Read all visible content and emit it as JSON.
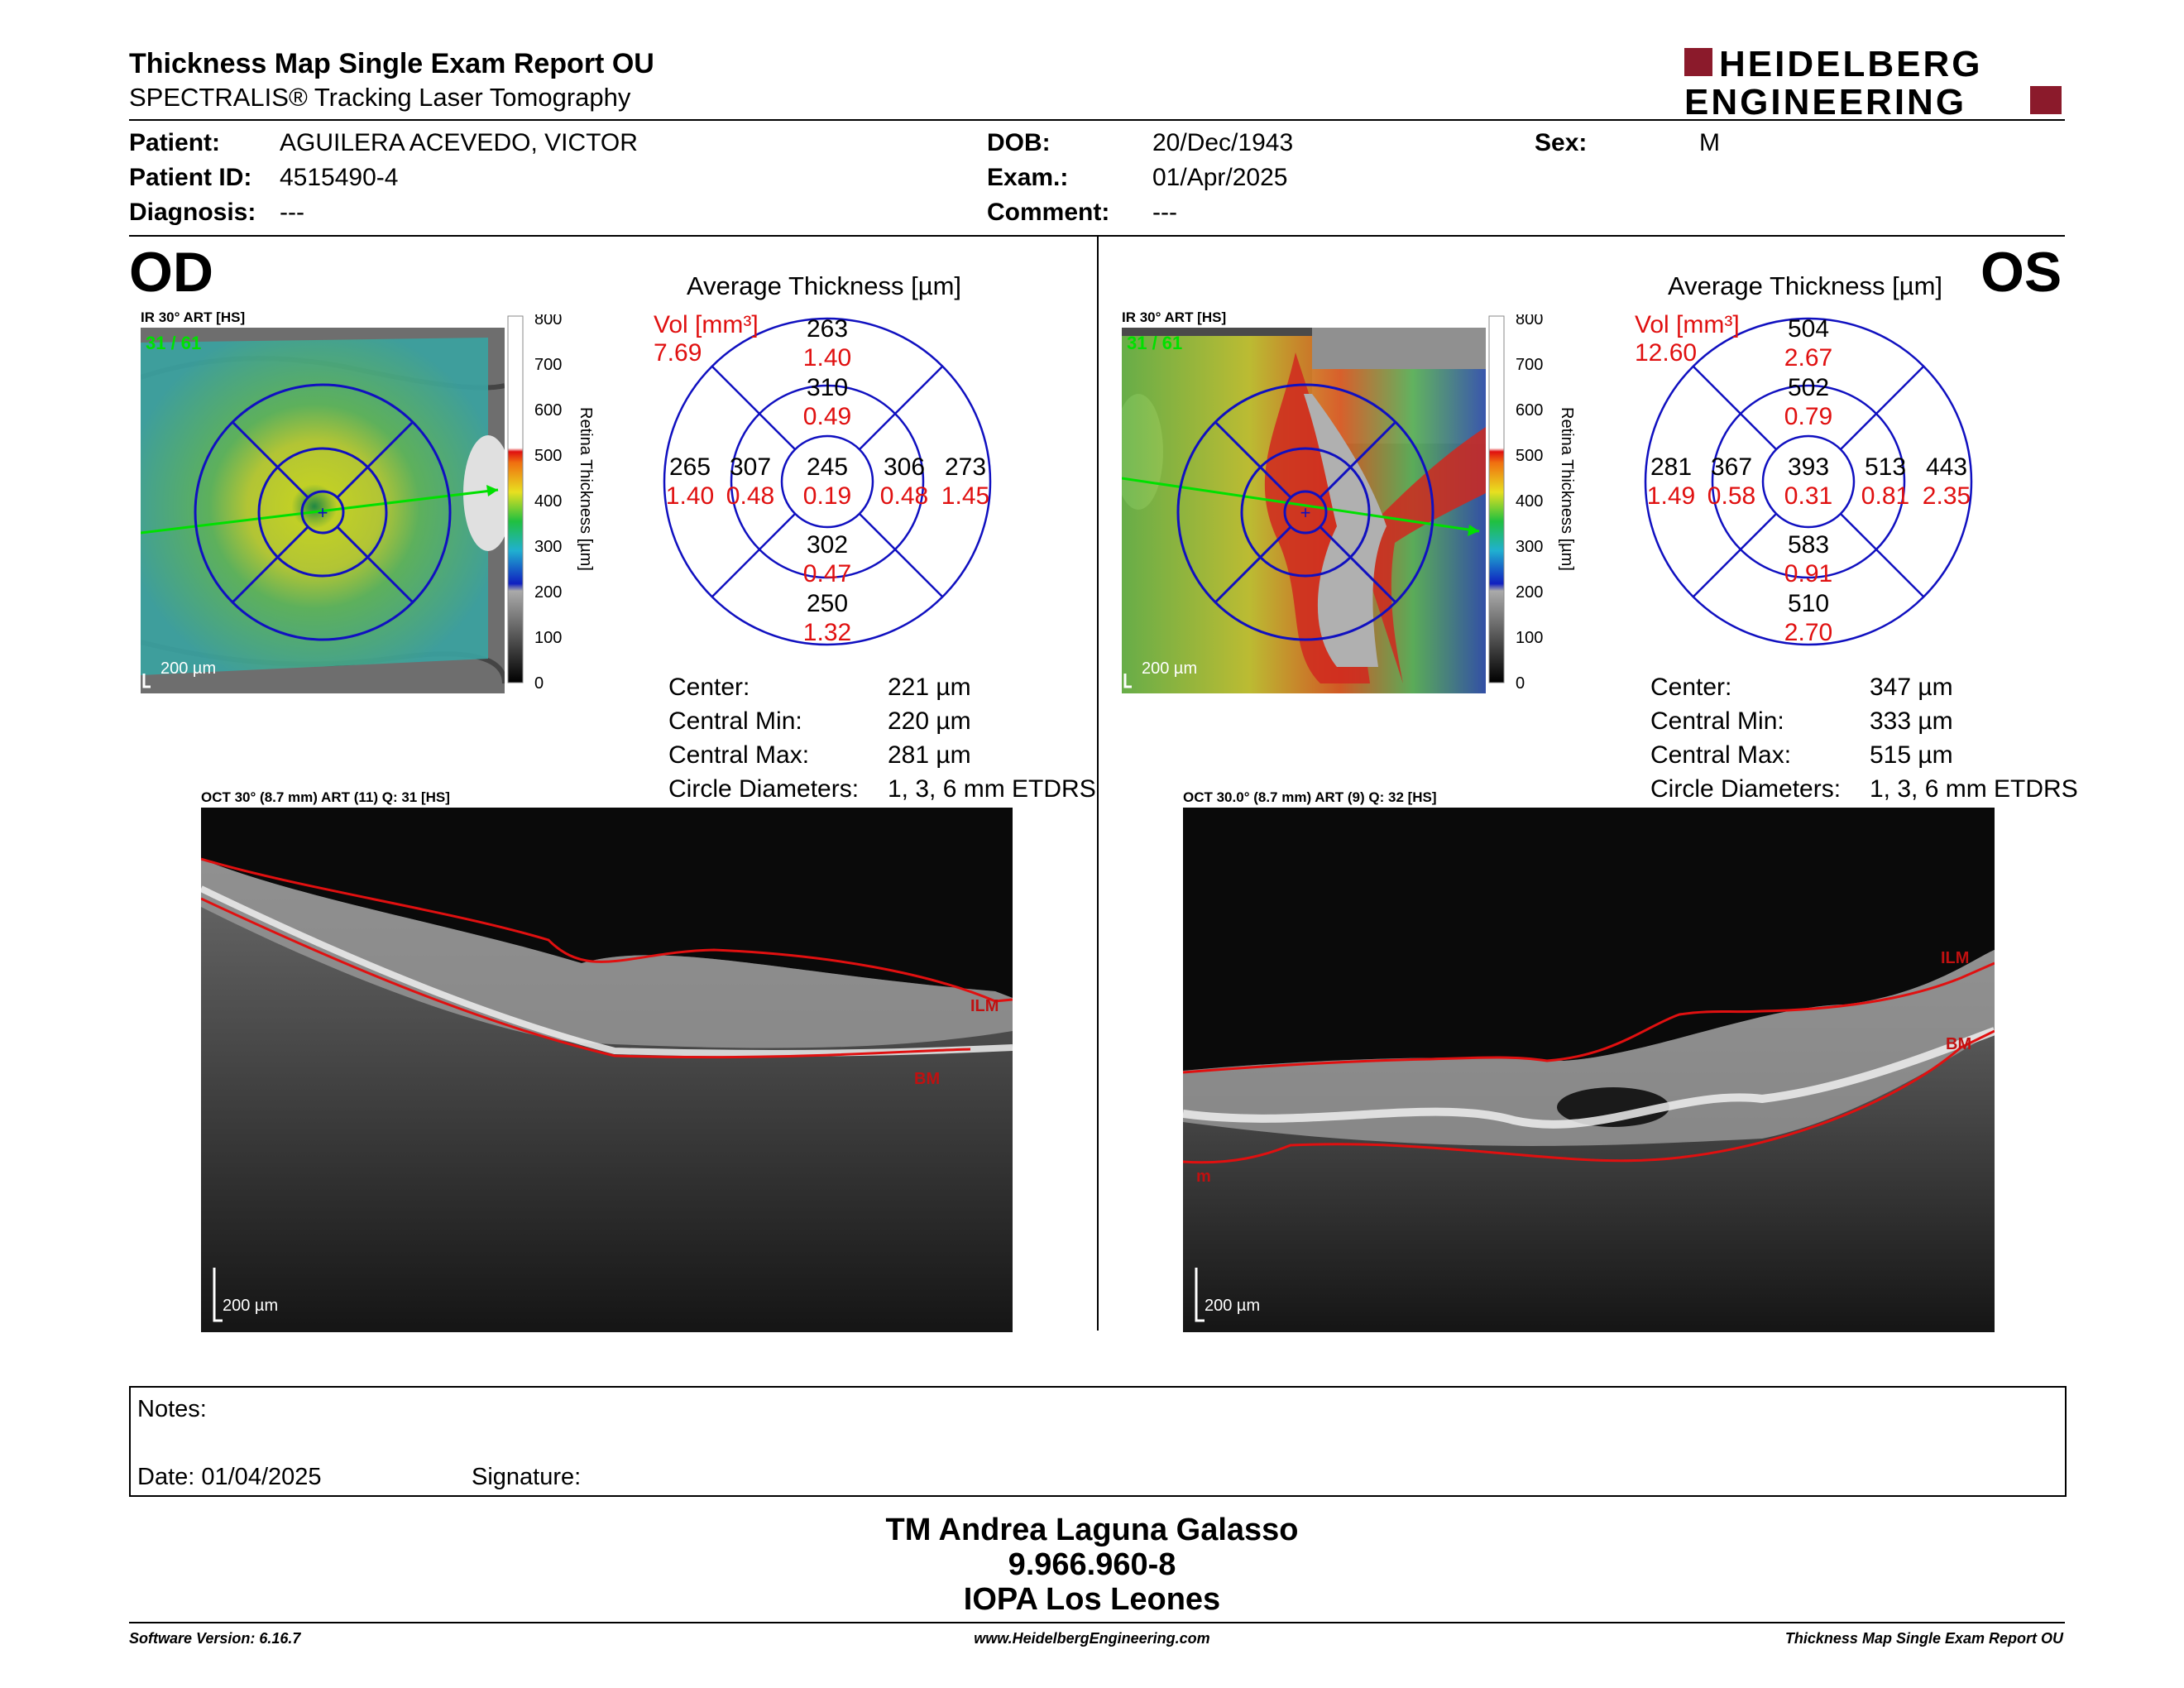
{
  "header": {
    "title": "Thickness Map Single Exam Report OU",
    "subtitle": "SPECTRALIS® Tracking Laser Tomography",
    "logo_line1": "HEIDELBERG",
    "logo_line2": "ENGINEERING",
    "logo_color": "#8b1a2b"
  },
  "patient": {
    "patient_label": "Patient:",
    "patient_value": "AGUILERA ACEVEDO, VICTOR",
    "id_label": "Patient ID:",
    "id_value": "4515490-4",
    "diagnosis_label": "Diagnosis:",
    "diagnosis_value": "---",
    "dob_label": "DOB:",
    "dob_value": "20/Dec/1943",
    "exam_label": "Exam.:",
    "exam_value": "01/Apr/2025",
    "comment_label": "Comment:",
    "comment_value": "---",
    "sex_label": "Sex:",
    "sex_value": "M"
  },
  "colorbar": {
    "ticks": [
      "800",
      "700",
      "600",
      "500",
      "400",
      "300",
      "200",
      "100",
      "0"
    ],
    "label": "Retina  Thickness [µm]"
  },
  "od": {
    "eye": "OD",
    "ir_caption": "IR 30° ART [HS]",
    "ir_overlay": "31 / 61",
    "scale": "200 µm",
    "avg_title": "Average Thickness [µm]",
    "vol_label": "Vol [mm³]",
    "vol_value": "7.69",
    "sectors": {
      "outer_top": {
        "t": "263",
        "v": "1.40"
      },
      "inner_top": {
        "t": "310",
        "v": "0.49"
      },
      "outer_left": {
        "t": "265",
        "v": "1.40"
      },
      "inner_left": {
        "t": "307",
        "v": "0.48"
      },
      "center": {
        "t": "245",
        "v": "0.19"
      },
      "inner_right": {
        "t": "306",
        "v": "0.48"
      },
      "outer_right": {
        "t": "273",
        "v": "1.45"
      },
      "inner_bottom": {
        "t": "302",
        "v": "0.47"
      },
      "outer_bottom": {
        "t": "250",
        "v": "1.32"
      }
    },
    "stats": [
      {
        "label": "Center:",
        "value": "221 µm"
      },
      {
        "label": "Central Min:",
        "value": "220 µm"
      },
      {
        "label": "Central Max:",
        "value": "281 µm"
      },
      {
        "label": "Circle Diameters:",
        "value": "1, 3, 6 mm ETDRS"
      }
    ],
    "oct_caption": "OCT 30° (8.7 mm) ART (11) Q: 31 [HS]",
    "ilm": "ILM",
    "bm": "BM"
  },
  "os": {
    "eye": "OS",
    "ir_caption": "IR 30° ART [HS]",
    "ir_overlay": "31 / 61",
    "scale": "200 µm",
    "avg_title": "Average Thickness [µm]",
    "vol_label": "Vol [mm³]",
    "vol_value": "12.60",
    "sectors": {
      "outer_top": {
        "t": "504",
        "v": "2.67"
      },
      "inner_top": {
        "t": "502",
        "v": "0.79"
      },
      "outer_left": {
        "t": "281",
        "v": "1.49"
      },
      "inner_left": {
        "t": "367",
        "v": "0.58"
      },
      "center": {
        "t": "393",
        "v": "0.31"
      },
      "inner_right": {
        "t": "513",
        "v": "0.81"
      },
      "outer_right": {
        "t": "443",
        "v": "2.35"
      },
      "inner_bottom": {
        "t": "583",
        "v": "0.91"
      },
      "outer_bottom": {
        "t": "510",
        "v": "2.70"
      }
    },
    "stats": [
      {
        "label": "Center:",
        "value": "347 µm"
      },
      {
        "label": "Central Min:",
        "value": "333 µm"
      },
      {
        "label": "Central Max:",
        "value": "515 µm"
      },
      {
        "label": "Circle Diameters:",
        "value": "1, 3, 6 mm ETDRS"
      }
    ],
    "oct_caption": "OCT 30.0° (8.7 mm) ART (9) Q: 32 [HS]",
    "ilm": "ILM",
    "bm": "BM",
    "bm_left": "m"
  },
  "notes": {
    "notes_label": "Notes:",
    "date_label": "Date: 01/04/2025",
    "signature_label": "Signature:"
  },
  "signature_block": {
    "name": "TM Andrea Laguna Galasso",
    "rut": "9.966.960-8",
    "institution": "IOPA Los Leones"
  },
  "footer": {
    "software": "Software Version: 6.16.7",
    "website": "www.HeidelbergEngineering.com",
    "report": "Thickness Map Single Exam Report OU"
  }
}
